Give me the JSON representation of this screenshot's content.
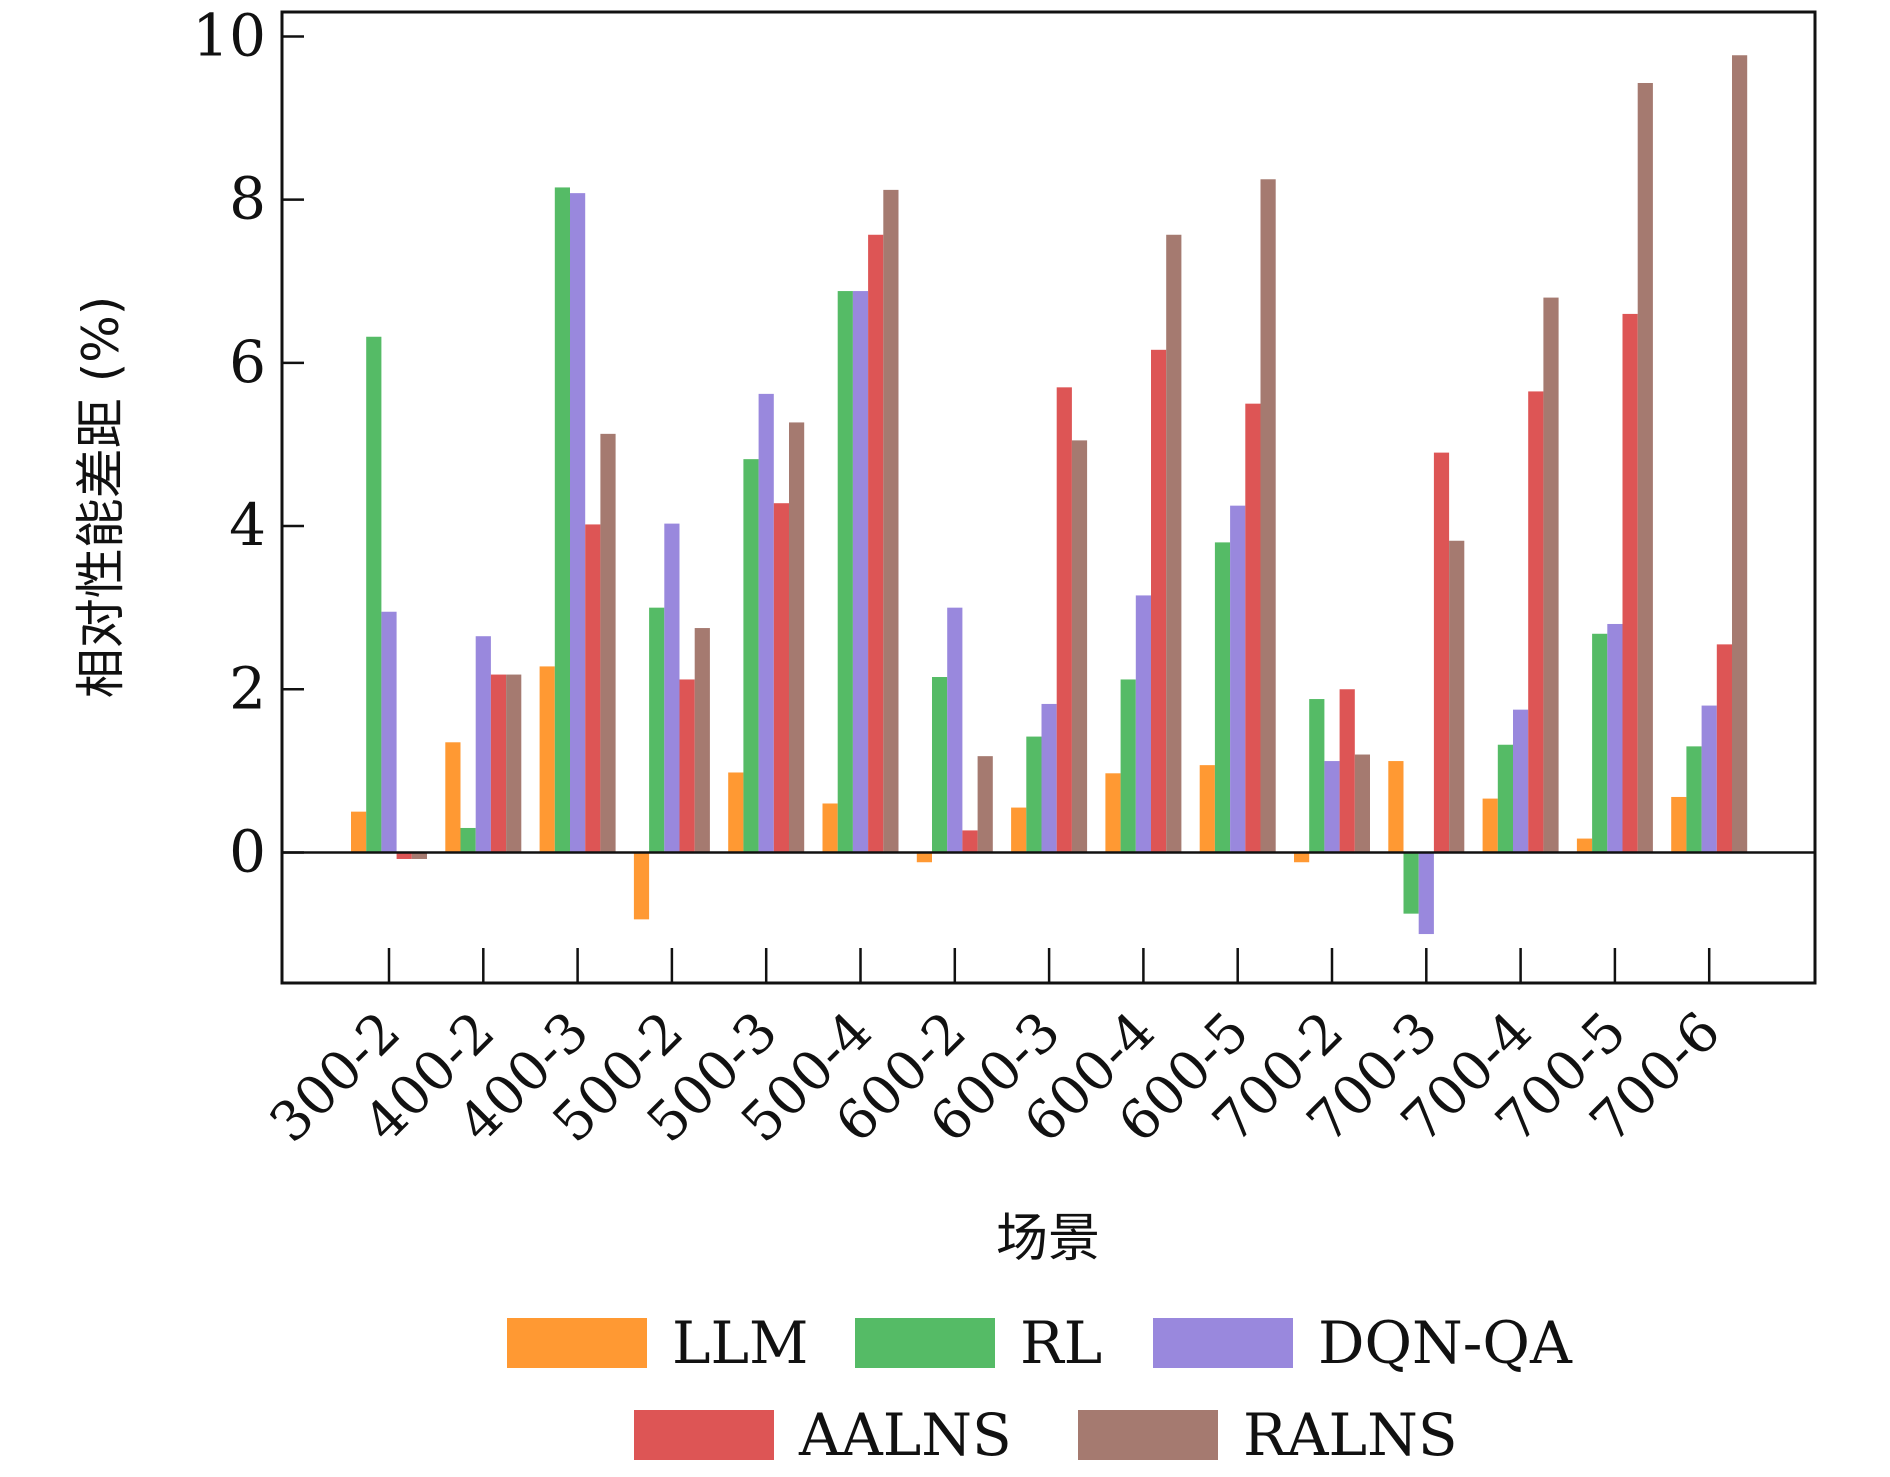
{
  "chart_data": {
    "type": "bar",
    "title": "",
    "xlabel": "场景",
    "ylabel": "相对性能差距 (%)",
    "ylim": [
      -1.6,
      10.3
    ],
    "yticks": [
      0,
      2,
      4,
      6,
      8,
      10
    ],
    "ytick_labels": [
      "0",
      "2",
      "4",
      "6",
      "8",
      "10"
    ],
    "categories": [
      "300-2",
      "400-2",
      "400-3",
      "500-2",
      "500-3",
      "500-4",
      "600-2",
      "600-3",
      "600-4",
      "600-5",
      "700-2",
      "700-3",
      "700-4",
      "700-5",
      "700-6"
    ],
    "series": [
      {
        "name": "LLM",
        "color": "#ff9933",
        "values": [
          0.5,
          1.35,
          2.28,
          -0.82,
          0.98,
          0.6,
          -0.12,
          0.55,
          0.97,
          1.07,
          -0.12,
          1.12,
          0.66,
          0.17,
          0.68
        ]
      },
      {
        "name": "RL",
        "color": "#55bb66",
        "values": [
          6.32,
          0.3,
          8.15,
          3.0,
          4.82,
          6.88,
          2.15,
          1.42,
          2.12,
          3.8,
          1.88,
          -0.75,
          1.32,
          2.68,
          1.3
        ]
      },
      {
        "name": "DQN-QA",
        "color": "#9988dd",
        "values": [
          2.95,
          2.65,
          8.08,
          4.03,
          5.62,
          6.88,
          3.0,
          1.82,
          3.15,
          4.25,
          1.12,
          -1.0,
          1.75,
          2.8,
          1.8
        ]
      },
      {
        "name": "AALNS",
        "color": "#dd5555",
        "values": [
          -0.08,
          2.18,
          4.02,
          2.12,
          4.28,
          7.57,
          0.27,
          5.7,
          6.16,
          5.5,
          2.0,
          4.9,
          5.65,
          6.6,
          2.55
        ]
      },
      {
        "name": "RALNS",
        "color": "#a57a70",
        "values": [
          -0.08,
          2.18,
          5.13,
          2.75,
          5.27,
          8.12,
          1.18,
          5.05,
          7.57,
          8.25,
          1.2,
          3.82,
          6.8,
          9.43,
          9.77
        ]
      }
    ],
    "grid": false,
    "legend_placement": "bottom"
  }
}
